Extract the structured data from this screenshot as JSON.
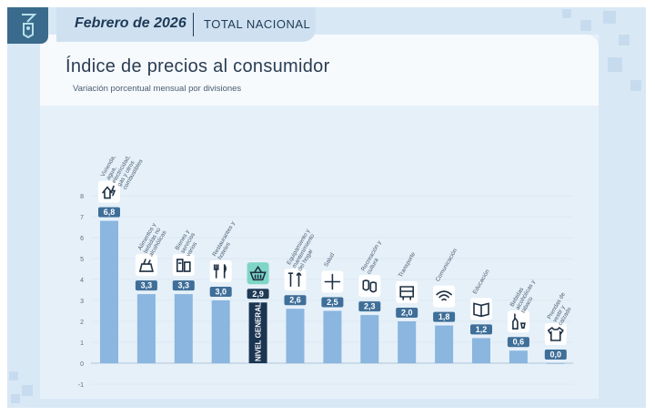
{
  "header": {
    "date": "Febrero de 2026",
    "scope": "TOTAL NACIONAL"
  },
  "chart_data": {
    "type": "bar",
    "title": "Índice de precios al consumidor",
    "subtitle": "Variación porcentual mensual por divisiones",
    "ylim": [
      -1,
      8
    ],
    "yticks": [
      -1,
      0,
      1,
      2,
      3,
      4,
      5,
      6,
      7,
      8
    ],
    "categories": [
      "Vivienda, agua, electricidad, gas y otros combustibles",
      "Alimentos y bebidas no alcohólicas",
      "Bienes y servicios varios",
      "Restaurantes y hoteles",
      "NIVEL GENERAL",
      "Equipamiento y mantenimiento del hogar",
      "Salud",
      "Recreación y cultura",
      "Transporte",
      "Comunicación",
      "Educación",
      "Bebidas alcohólicas y tabaco",
      "Prendas de vestir y calzado"
    ],
    "values": [
      6.8,
      3.3,
      3.3,
      3.0,
      2.9,
      2.6,
      2.5,
      2.3,
      2.0,
      1.8,
      1.2,
      0.6,
      0.0
    ],
    "value_labels": [
      "6,8",
      "3,3",
      "3,3",
      "3,0",
      "2,9",
      "2,6",
      "2,5",
      "2,3",
      "2,0",
      "1,8",
      "1,2",
      "0,6",
      "0,0"
    ],
    "icons": [
      "house-bolt-icon",
      "food-bag-icon",
      "products-icon",
      "cutlery-icon",
      "basket-icon",
      "tools-icon",
      "health-cross-icon",
      "theater-masks-icon",
      "bus-icon",
      "wifi-icon",
      "book-icon",
      "bottle-glass-icon",
      "tshirt-icon"
    ],
    "highlight": "NIVEL GENERAL",
    "colors": {
      "bar": "#8ab6df",
      "highlight_bar": "#1a3552",
      "label_bg": "#3f6f99",
      "highlight_label_bg": "#203a55",
      "icon_highlight_bg": "#7fd6c6"
    }
  }
}
